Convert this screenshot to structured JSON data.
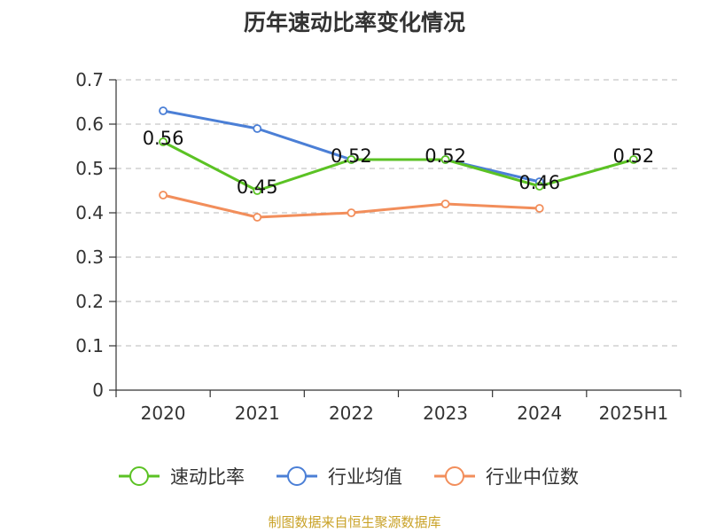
{
  "title": "历年速动比率变化情况",
  "source": "制图数据来自恒生聚源数据库",
  "chart_data": {
    "type": "line",
    "categories": [
      "2020",
      "2021",
      "2022",
      "2023",
      "2024",
      "2025H1"
    ],
    "ylim": [
      0,
      0.7
    ],
    "yticks": [
      "0",
      "0.1",
      "0.2",
      "0.3",
      "0.4",
      "0.5",
      "0.6",
      "0.7"
    ],
    "grid": true,
    "legend_position": "bottom",
    "series": [
      {
        "name": "速动比率",
        "color": "#5bc224",
        "values": [
          0.56,
          0.45,
          0.52,
          0.52,
          0.46,
          0.52
        ],
        "labels": [
          "0.56",
          "0.45",
          "0.52",
          "0.52",
          "0.46",
          "0.52"
        ]
      },
      {
        "name": "行业均值",
        "color": "#4b7fd6",
        "values": [
          0.63,
          0.59,
          0.52,
          0.52,
          0.47,
          null
        ]
      },
      {
        "name": "行业中位数",
        "color": "#f28e5b",
        "values": [
          0.44,
          0.39,
          0.4,
          0.42,
          0.41,
          null
        ]
      }
    ]
  }
}
